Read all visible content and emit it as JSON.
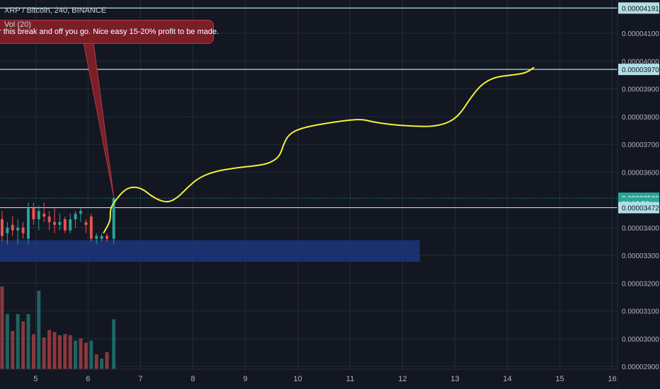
{
  "header": {
    "symbol_line": "XRP / Bitcoin, 240, BINANCE",
    "indicator": "Vol (20)"
  },
  "annotation": {
    "note": "r this break and off you go. Nice easy 15-20% profit to  be made."
  },
  "colors": {
    "background": "#131722",
    "up": "#26a69a",
    "down": "#ef5350",
    "drawing": "#f5f03a",
    "horizontal_line": "#b2dfe6",
    "zone": "#1e3a8a",
    "note_bg": "#7a1f27"
  },
  "chart_data": {
    "type": "candlestick",
    "y_axis": {
      "range": [
        2.89e-05,
        4.22e-05
      ],
      "ticks": [
        "0.00004100",
        "0.00004000",
        "0.00003900",
        "0.00003800",
        "0.00003700",
        "0.00003600",
        "0.00003400",
        "0.00003300",
        "0.00003200",
        "0.00003100",
        "0.00003000",
        "0.00002900"
      ],
      "tick_values": [
        4.1e-05,
        4e-05,
        3.9e-05,
        3.8e-05,
        3.7e-05,
        3.6e-05,
        3.4e-05,
        3.3e-05,
        3.2e-05,
        3.1e-05,
        3e-05,
        2.9e-05
      ]
    },
    "x_axis": {
      "range": [
        4.32,
        16.1
      ],
      "ticks": [
        "5",
        "6",
        "7",
        "8",
        "9",
        "10",
        "11",
        "12",
        "13",
        "14",
        "15",
        "16"
      ],
      "tick_values": [
        5,
        6,
        7,
        8,
        9,
        10,
        11,
        12,
        13,
        14,
        15,
        16
      ]
    },
    "price_labels": [
      {
        "text": "0.00004191",
        "value": 4.191e-05,
        "style": "line"
      },
      {
        "text": "0.00003970",
        "value": 3.97e-05,
        "style": "line"
      },
      {
        "text": "0.00003506",
        "value": 3.506e-05,
        "style": "current"
      },
      {
        "text": "01:10:58",
        "value": 3.488e-05,
        "style": "timer"
      },
      {
        "text": "0.00003472",
        "value": 3.472e-05,
        "style": "line"
      }
    ],
    "horizontal_lines": [
      4.191e-05,
      3.97e-05,
      3.472e-05
    ],
    "candles": [
      {
        "x": 4.36,
        "o": 3.43e-05,
        "h": 3.46e-05,
        "l": 3.35e-05,
        "c": 3.37e-05
      },
      {
        "x": 4.46,
        "o": 3.38e-05,
        "h": 3.42e-05,
        "l": 3.34e-05,
        "c": 3.4e-05
      },
      {
        "x": 4.56,
        "o": 3.41e-05,
        "h": 3.44e-05,
        "l": 3.37e-05,
        "c": 3.39e-05
      },
      {
        "x": 4.66,
        "o": 3.39e-05,
        "h": 3.43e-05,
        "l": 3.34e-05,
        "c": 3.4e-05
      },
      {
        "x": 4.76,
        "o": 3.4e-05,
        "h": 3.42e-05,
        "l": 3.36e-05,
        "c": 3.38e-05
      },
      {
        "x": 4.86,
        "o": 3.36e-05,
        "h": 3.49e-05,
        "l": 3.34e-05,
        "c": 3.47e-05
      },
      {
        "x": 4.96,
        "o": 3.47e-05,
        "h": 3.49e-05,
        "l": 3.41e-05,
        "c": 3.43e-05
      },
      {
        "x": 5.06,
        "o": 3.43e-05,
        "h": 3.48e-05,
        "l": 3.39e-05,
        "c": 3.46e-05
      },
      {
        "x": 5.16,
        "o": 3.45e-05,
        "h": 3.49e-05,
        "l": 3.42e-05,
        "c": 3.44e-05
      },
      {
        "x": 5.26,
        "o": 3.44e-05,
        "h": 3.46e-05,
        "l": 3.39e-05,
        "c": 3.42e-05
      },
      {
        "x": 5.36,
        "o": 3.42e-05,
        "h": 3.47e-05,
        "l": 3.38e-05,
        "c": 3.41e-05
      },
      {
        "x": 5.46,
        "o": 3.41e-05,
        "h": 3.45e-05,
        "l": 3.39e-05,
        "c": 3.42e-05
      },
      {
        "x": 5.56,
        "o": 3.43e-05,
        "h": 3.44e-05,
        "l": 3.38e-05,
        "c": 3.39e-05
      },
      {
        "x": 5.66,
        "o": 3.39e-05,
        "h": 3.45e-05,
        "l": 3.38e-05,
        "c": 3.43e-05
      },
      {
        "x": 5.76,
        "o": 3.43e-05,
        "h": 3.46e-05,
        "l": 3.4e-05,
        "c": 3.45e-05
      },
      {
        "x": 5.86,
        "o": 3.45e-05,
        "h": 3.47e-05,
        "l": 3.42e-05,
        "c": 3.46e-05
      },
      {
        "x": 5.96,
        "o": 3.42e-05,
        "h": 3.43e-05,
        "l": 3.38e-05,
        "c": 3.41e-05
      },
      {
        "x": 6.06,
        "o": 3.44e-05,
        "h": 3.45e-05,
        "l": 3.35e-05,
        "c": 3.36e-05
      },
      {
        "x": 6.16,
        "o": 3.36e-05,
        "h": 3.38e-05,
        "l": 3.34e-05,
        "c": 3.37e-05
      },
      {
        "x": 6.26,
        "o": 3.36e-05,
        "h": 3.38e-05,
        "l": 3.35e-05,
        "c": 3.37e-05
      },
      {
        "x": 6.36,
        "o": 3.37e-05,
        "h": 3.38e-05,
        "l": 3.35e-05,
        "c": 3.36e-05
      },
      {
        "x": 6.49,
        "o": 3.36e-05,
        "h": 3.51e-05,
        "l": 3.34e-05,
        "c": 3.506e-05
      }
    ],
    "volume": [
      {
        "x": 4.36,
        "v": 0.78,
        "up": false
      },
      {
        "x": 4.46,
        "v": 0.52,
        "up": true
      },
      {
        "x": 4.56,
        "v": 0.36,
        "up": false
      },
      {
        "x": 4.66,
        "v": 0.52,
        "up": true
      },
      {
        "x": 4.76,
        "v": 0.45,
        "up": false
      },
      {
        "x": 4.86,
        "v": 0.52,
        "up": true
      },
      {
        "x": 4.96,
        "v": 0.33,
        "up": false
      },
      {
        "x": 5.06,
        "v": 0.74,
        "up": true
      },
      {
        "x": 5.16,
        "v": 0.3,
        "up": false
      },
      {
        "x": 5.26,
        "v": 0.37,
        "up": false
      },
      {
        "x": 5.36,
        "v": 0.35,
        "up": false
      },
      {
        "x": 5.46,
        "v": 0.32,
        "up": false
      },
      {
        "x": 5.56,
        "v": 0.33,
        "up": false
      },
      {
        "x": 5.66,
        "v": 0.32,
        "up": false
      },
      {
        "x": 5.76,
        "v": 0.27,
        "up": true
      },
      {
        "x": 5.86,
        "v": 0.29,
        "up": false
      },
      {
        "x": 5.96,
        "v": 0.25,
        "up": false
      },
      {
        "x": 6.06,
        "v": 0.27,
        "up": true
      },
      {
        "x": 6.16,
        "v": 0.14,
        "up": false
      },
      {
        "x": 6.26,
        "v": 0.1,
        "up": true
      },
      {
        "x": 6.36,
        "v": 0.16,
        "up": false
      },
      {
        "x": 6.49,
        "v": 0.47,
        "up": true
      }
    ],
    "zone": {
      "x0": 4.32,
      "x1": 12.33,
      "y0": 3.277e-05,
      "y1": 3.355e-05
    },
    "drawing": [
      [
        6.3,
        3.382e-05
      ],
      [
        6.43,
        3.425e-05
      ],
      [
        6.42,
        3.465e-05
      ],
      [
        6.5,
        3.493e-05
      ],
      [
        6.7,
        3.538e-05
      ],
      [
        6.88,
        3.548e-05
      ],
      [
        7.05,
        3.538e-05
      ],
      [
        7.2,
        3.515e-05
      ],
      [
        7.38,
        3.496e-05
      ],
      [
        7.55,
        3.492e-05
      ],
      [
        7.72,
        3.51e-05
      ],
      [
        7.9,
        3.545e-05
      ],
      [
        8.1,
        3.578e-05
      ],
      [
        8.4,
        3.602e-05
      ],
      [
        8.8,
        3.615e-05
      ],
      [
        9.2,
        3.623e-05
      ],
      [
        9.45,
        3.631e-05
      ],
      [
        9.65,
        3.655e-05
      ],
      [
        9.72,
        3.695e-05
      ],
      [
        9.82,
        3.735e-05
      ],
      [
        10.05,
        3.758e-05
      ],
      [
        10.5,
        3.775e-05
      ],
      [
        11.0,
        3.788e-05
      ],
      [
        11.25,
        3.79e-05
      ],
      [
        11.45,
        3.78e-05
      ],
      [
        11.8,
        3.771e-05
      ],
      [
        12.2,
        3.765e-05
      ],
      [
        12.6,
        3.764e-05
      ],
      [
        12.9,
        3.78e-05
      ],
      [
        13.1,
        3.81e-05
      ],
      [
        13.3,
        3.868e-05
      ],
      [
        13.5,
        3.915e-05
      ],
      [
        13.75,
        3.942e-05
      ],
      [
        14.1,
        3.95e-05
      ],
      [
        14.35,
        3.957e-05
      ],
      [
        14.5,
        3.976e-05
      ]
    ]
  }
}
